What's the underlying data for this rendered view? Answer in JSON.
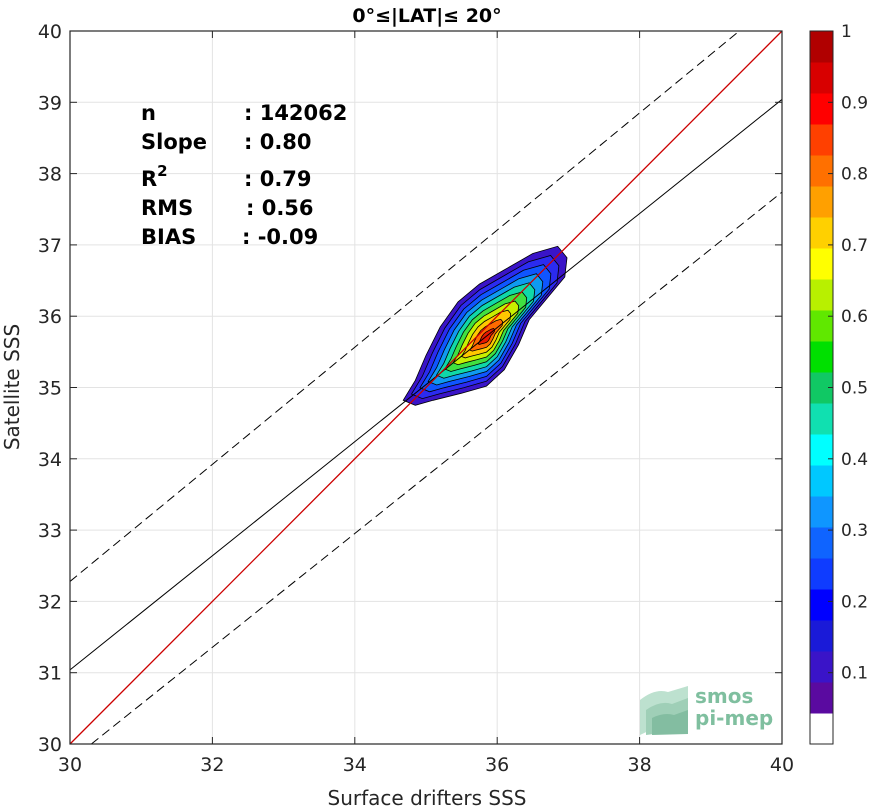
{
  "chart_data": {
    "type": "scatter",
    "title": "0°≤|LAT|≤ 20°",
    "xlabel": "Surface drifters SSS",
    "ylabel": "Satellite SSS",
    "xlim": [
      30,
      40
    ],
    "ylim": [
      30,
      40
    ],
    "xticks": [
      "30",
      "32",
      "34",
      "36",
      "38",
      "40"
    ],
    "yticks": [
      "30",
      "31",
      "32",
      "33",
      "34",
      "35",
      "36",
      "37",
      "38",
      "39",
      "40"
    ],
    "grid": true,
    "stats": {
      "n_label": "n",
      "n_value": ": 142062",
      "slope_label": "Slope",
      "slope_value": ": 0.80",
      "r2_label": "R",
      "r2_sup": "2",
      "r2_value": ": 0.79",
      "rms_label": "RMS",
      "rms_value": ": 0.56",
      "bias_label": "BIAS",
      "bias_value": ": -0.09"
    },
    "identity_line": {
      "from": [
        30,
        30
      ],
      "to": [
        40,
        40
      ],
      "color": "#cc0000"
    },
    "fit_line": {
      "from": [
        30,
        31.04
      ],
      "to": [
        40,
        39.04
      ],
      "color": "#000000"
    },
    "confidence_lines": [
      {
        "from": [
          30,
          32.28
        ],
        "to": [
          39.4,
          40.0
        ],
        "style": "dashed"
      },
      {
        "from": [
          30.3,
          30.0
        ],
        "to": [
          40,
          37.74
        ],
        "style": "dashed"
      }
    ],
    "density_contours": {
      "center": [
        35.85,
        35.7
      ],
      "levels": [
        0.05,
        0.1,
        0.2,
        0.3,
        0.4,
        0.5,
        0.6,
        0.7,
        0.8,
        0.9
      ],
      "outer_polygon": [
        [
          34.68,
          34.82
        ],
        [
          34.85,
          35.1
        ],
        [
          35.0,
          35.45
        ],
        [
          35.2,
          35.85
        ],
        [
          35.45,
          36.2
        ],
        [
          35.75,
          36.45
        ],
        [
          36.1,
          36.65
        ],
        [
          36.5,
          36.88
        ],
        [
          36.85,
          36.98
        ],
        [
          36.98,
          36.82
        ],
        [
          36.95,
          36.55
        ],
        [
          36.7,
          36.25
        ],
        [
          36.45,
          35.95
        ],
        [
          36.3,
          35.6
        ],
        [
          36.1,
          35.25
        ],
        [
          35.85,
          35.02
        ],
        [
          35.5,
          34.92
        ],
        [
          35.1,
          34.82
        ],
        [
          34.85,
          34.75
        ]
      ],
      "colors": [
        "#3a14c8",
        "#2b2bf0",
        "#0f55ff",
        "#0f9af0",
        "#10d8a8",
        "#40e040",
        "#c8f000",
        "#ffc800",
        "#ff6a00",
        "#e81800"
      ]
    },
    "colorbar": {
      "ticks": [
        "0.1",
        "0.2",
        "0.3",
        "0.4",
        "0.5",
        "0.6",
        "0.7",
        "0.8",
        "0.9",
        "1"
      ],
      "range": [
        0,
        1
      ],
      "colors": [
        "#ffffff",
        "#5a0aa0",
        "#3a14c8",
        "#1a1ad8",
        "#0000ff",
        "#0f3cff",
        "#0f64ff",
        "#0f96ff",
        "#00c8ff",
        "#00ffff",
        "#10e0b0",
        "#10c864",
        "#00e000",
        "#60e800",
        "#b8f000",
        "#ffff00",
        "#ffd000",
        "#ffa000",
        "#ff7000",
        "#ff4000",
        "#ff0000",
        "#d80000",
        "#b00000"
      ]
    },
    "logo": {
      "line1": "smos",
      "line2": "pi-mep"
    }
  }
}
